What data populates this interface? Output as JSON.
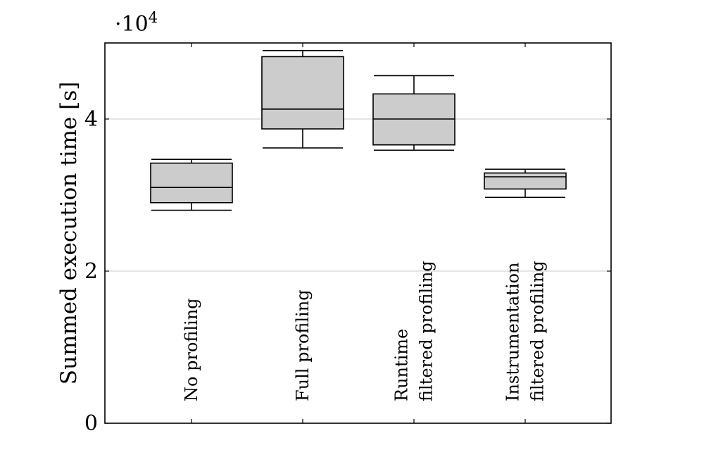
{
  "chart_data": {
    "type": "box",
    "ylabel": "Summed execution time [s]",
    "y_multiplier_label": "·10",
    "y_multiplier_exponent": "4",
    "ylim": [
      0,
      50000
    ],
    "yticks": [
      0,
      20000,
      40000
    ],
    "ytick_labels": [
      "0",
      "2",
      "4"
    ],
    "grid": "horizontal",
    "categories": [
      [
        "No profiling"
      ],
      [
        "Full profiling"
      ],
      [
        "Runtime",
        "filtered profiling"
      ],
      [
        "Instrumentation",
        "filtered profiling"
      ]
    ],
    "boxes": [
      {
        "whisker_low": 28000,
        "q1": 29000,
        "median": 31000,
        "q3": 34200,
        "whisker_high": 34700
      },
      {
        "whisker_low": 36200,
        "q1": 38700,
        "median": 41300,
        "q3": 48200,
        "whisker_high": 49000
      },
      {
        "whisker_low": 35900,
        "q1": 36600,
        "median": 40000,
        "q3": 43300,
        "whisker_high": 45700
      },
      {
        "whisker_low": 29700,
        "q1": 30800,
        "median": 32400,
        "q3": 32900,
        "whisker_high": 33400
      }
    ],
    "colors": {
      "box_fill": "#cccccc",
      "stroke": "#000000",
      "grid": "#c8c8c8"
    }
  }
}
